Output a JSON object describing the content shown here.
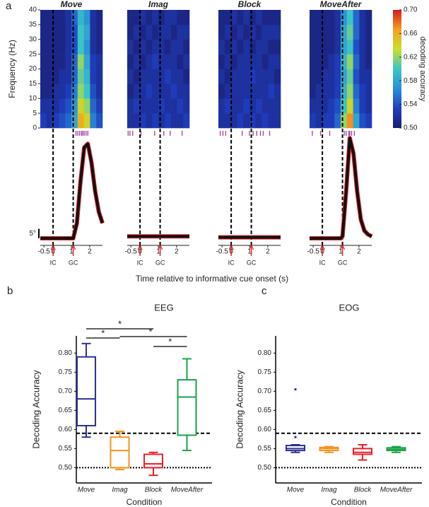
{
  "panel_labels": [
    "a",
    "b",
    "c"
  ],
  "shared_x_label": "Time relative to informative cue onset  (s)",
  "chart_data": [
    {
      "type": "heatmap",
      "title": "Move",
      "title_color": "#2e3192",
      "y_label": "Frequency (Hz)",
      "xlim": [
        -0.7,
        2.7
      ],
      "ylim": [
        0,
        40
      ],
      "yticks": [
        0,
        5,
        10,
        15,
        20,
        25,
        30,
        35,
        40
      ],
      "values": [
        [
          0.53,
          0.52,
          0.53,
          0.54,
          0.55,
          0.58,
          0.66,
          0.64,
          0.56,
          0.54
        ],
        [
          0.52,
          0.52,
          0.52,
          0.53,
          0.54,
          0.57,
          0.64,
          0.62,
          0.55,
          0.53
        ],
        [
          0.51,
          0.51,
          0.52,
          0.52,
          0.53,
          0.56,
          0.62,
          0.6,
          0.54,
          0.52
        ],
        [
          0.51,
          0.51,
          0.51,
          0.52,
          0.52,
          0.55,
          0.61,
          0.59,
          0.53,
          0.52
        ],
        [
          0.51,
          0.51,
          0.51,
          0.51,
          0.52,
          0.55,
          0.62,
          0.58,
          0.53,
          0.52
        ],
        [
          0.51,
          0.51,
          0.51,
          0.51,
          0.52,
          0.54,
          0.6,
          0.57,
          0.52,
          0.51
        ],
        [
          0.51,
          0.51,
          0.51,
          0.51,
          0.52,
          0.54,
          0.6,
          0.58,
          0.52,
          0.51
        ],
        [
          0.51,
          0.51,
          0.51,
          0.51,
          0.52,
          0.55,
          0.59,
          0.57,
          0.52,
          0.51
        ]
      ]
    },
    {
      "type": "heatmap",
      "title": "Imag",
      "title_color": "#f7941d",
      "xlim": [
        -0.7,
        2.7
      ],
      "ylim": [
        0,
        40
      ],
      "values": [
        [
          0.52,
          0.52,
          0.53,
          0.52,
          0.53,
          0.52,
          0.53,
          0.52,
          0.52,
          0.53
        ],
        [
          0.52,
          0.53,
          0.52,
          0.52,
          0.52,
          0.53,
          0.52,
          0.52,
          0.53,
          0.52
        ],
        [
          0.51,
          0.52,
          0.52,
          0.53,
          0.52,
          0.52,
          0.52,
          0.53,
          0.52,
          0.52
        ],
        [
          0.52,
          0.51,
          0.52,
          0.52,
          0.52,
          0.52,
          0.53,
          0.52,
          0.52,
          0.51
        ],
        [
          0.51,
          0.52,
          0.51,
          0.52,
          0.53,
          0.52,
          0.52,
          0.52,
          0.51,
          0.52
        ],
        [
          0.52,
          0.51,
          0.52,
          0.51,
          0.52,
          0.52,
          0.51,
          0.52,
          0.52,
          0.51
        ],
        [
          0.51,
          0.52,
          0.51,
          0.52,
          0.51,
          0.52,
          0.52,
          0.51,
          0.52,
          0.52
        ],
        [
          0.51,
          0.51,
          0.52,
          0.51,
          0.52,
          0.51,
          0.52,
          0.52,
          0.51,
          0.51
        ]
      ]
    },
    {
      "type": "heatmap",
      "title": "Block",
      "title_color": "#e8212a",
      "xlim": [
        -0.7,
        2.7
      ],
      "ylim": [
        0,
        40
      ],
      "values": [
        [
          0.52,
          0.52,
          0.52,
          0.53,
          0.52,
          0.53,
          0.52,
          0.53,
          0.52,
          0.52
        ],
        [
          0.52,
          0.53,
          0.52,
          0.52,
          0.53,
          0.52,
          0.53,
          0.52,
          0.52,
          0.52
        ],
        [
          0.51,
          0.52,
          0.52,
          0.52,
          0.52,
          0.52,
          0.52,
          0.52,
          0.53,
          0.52
        ],
        [
          0.52,
          0.51,
          0.52,
          0.52,
          0.52,
          0.53,
          0.52,
          0.52,
          0.52,
          0.51
        ],
        [
          0.51,
          0.52,
          0.51,
          0.52,
          0.52,
          0.52,
          0.52,
          0.51,
          0.52,
          0.52
        ],
        [
          0.52,
          0.51,
          0.52,
          0.51,
          0.52,
          0.51,
          0.52,
          0.52,
          0.51,
          0.51
        ],
        [
          0.51,
          0.52,
          0.51,
          0.52,
          0.51,
          0.52,
          0.51,
          0.52,
          0.52,
          0.52
        ],
        [
          0.51,
          0.51,
          0.52,
          0.51,
          0.52,
          0.51,
          0.52,
          0.51,
          0.51,
          0.51
        ]
      ]
    },
    {
      "type": "heatmap",
      "title": "MoveAfter",
      "title_color": "#1aa349",
      "xlim": [
        -0.7,
        2.7
      ],
      "ylim": [
        0,
        40
      ],
      "values": [
        [
          0.53,
          0.52,
          0.53,
          0.53,
          0.55,
          0.62,
          0.67,
          0.58,
          0.54,
          0.53
        ],
        [
          0.52,
          0.52,
          0.52,
          0.53,
          0.54,
          0.6,
          0.64,
          0.56,
          0.53,
          0.52
        ],
        [
          0.51,
          0.52,
          0.52,
          0.52,
          0.53,
          0.59,
          0.62,
          0.55,
          0.53,
          0.52
        ],
        [
          0.51,
          0.51,
          0.52,
          0.52,
          0.53,
          0.58,
          0.61,
          0.54,
          0.52,
          0.52
        ],
        [
          0.51,
          0.51,
          0.51,
          0.52,
          0.53,
          0.59,
          0.62,
          0.55,
          0.52,
          0.51
        ],
        [
          0.51,
          0.51,
          0.51,
          0.51,
          0.52,
          0.58,
          0.6,
          0.54,
          0.52,
          0.51
        ],
        [
          0.51,
          0.51,
          0.51,
          0.51,
          0.52,
          0.58,
          0.61,
          0.55,
          0.52,
          0.51
        ],
        [
          0.51,
          0.51,
          0.51,
          0.51,
          0.52,
          0.57,
          0.6,
          0.55,
          0.52,
          0.51
        ]
      ]
    },
    {
      "type": "colorbar",
      "label": "decoding accuracy",
      "lim": [
        0.5,
        0.7
      ],
      "ticks": [
        {
          "value": 0.5,
          "label": "0.50"
        },
        {
          "value": 0.54,
          "label": "0.54"
        },
        {
          "value": 0.58,
          "label": "0.58"
        },
        {
          "value": 0.62,
          "label": "0.62"
        },
        {
          "value": 0.66,
          "label": "0.66"
        },
        {
          "value": 0.7,
          "label": "0.70"
        }
      ],
      "colormap": [
        "#1b1b6e",
        "#1f3fbf",
        "#2a8fd8",
        "#3cc4c4",
        "#c8e02a",
        "#f4a020",
        "#d7191c"
      ]
    },
    {
      "type": "line",
      "xlim": [
        -0.7,
        2.7
      ],
      "ylim": [
        -3,
        55
      ],
      "xticks": [
        -0.5,
        0,
        1,
        2
      ],
      "events": [
        {
          "value": 0,
          "label": "IC"
        },
        {
          "value": 1.1,
          "label": "GC"
        }
      ],
      "scale_bar": {
        "value": 5,
        "label": "5°"
      },
      "significant_times": [
        1.25,
        1.35,
        1.45,
        1.55,
        1.62,
        1.7,
        1.8,
        1.9
      ],
      "x": [
        -0.7,
        0,
        1,
        1.1,
        1.3,
        1.5,
        1.7,
        1.9,
        2.1,
        2.3,
        2.5,
        2.7
      ],
      "values": [
        0,
        0,
        0,
        0,
        8,
        30,
        48,
        50,
        40,
        25,
        14,
        8
      ]
    },
    {
      "type": "line",
      "xlim": [
        -0.7,
        2.7
      ],
      "ylim": [
        -3,
        55
      ],
      "xticks": [
        -0.5,
        0,
        1,
        2
      ],
      "events": [
        {
          "value": 0,
          "label": "IC"
        },
        {
          "value": 1.1,
          "label": "GC"
        }
      ],
      "significant_times": [
        -0.65,
        -0.55,
        -0.4,
        0.05,
        0.8,
        1.3,
        1.65,
        2.3
      ],
      "x": [
        -0.7,
        0,
        1,
        1.1,
        1.3,
        1.5,
        1.7,
        1.9,
        2.1,
        2.3,
        2.5,
        2.7
      ],
      "values": [
        1,
        1,
        1,
        1,
        1,
        1,
        1,
        1,
        1,
        1,
        1,
        1
      ]
    },
    {
      "type": "line",
      "xlim": [
        -0.7,
        2.7
      ],
      "ylim": [
        -3,
        55
      ],
      "xticks": [
        -0.5,
        0,
        1,
        2
      ],
      "events": [
        {
          "value": 0,
          "label": "IC"
        },
        {
          "value": 1.1,
          "label": "GC"
        }
      ],
      "significant_times": [
        -0.6,
        -0.45,
        -0.3,
        0.6,
        1.0,
        1.2,
        1.4,
        1.6,
        1.75,
        2.1
      ],
      "x": [
        -0.7,
        0,
        1,
        1.1,
        1.3,
        1.5,
        1.7,
        1.9,
        2.1,
        2.3,
        2.5,
        2.7
      ],
      "values": [
        0.5,
        0.5,
        0.5,
        0.5,
        0.5,
        0.5,
        0.5,
        0.5,
        0.5,
        0.5,
        0.5,
        0.5
      ]
    },
    {
      "type": "line",
      "xlim": [
        -0.7,
        2.7
      ],
      "ylim": [
        -3,
        55
      ],
      "xticks": [
        -0.5,
        0,
        1,
        2
      ],
      "events": [
        {
          "value": 0,
          "label": "IC"
        },
        {
          "value": 1.1,
          "label": "GC"
        }
      ],
      "significant_times": [
        -0.55,
        -0.1,
        0.4,
        1.2,
        1.3,
        1.45,
        1.5,
        1.6,
        1.75
      ],
      "x": [
        -0.7,
        0,
        1,
        1.1,
        1.3,
        1.5,
        1.7,
        1.9,
        2.1,
        2.3,
        2.5,
        2.7
      ],
      "values": [
        0,
        0,
        0,
        1,
        25,
        53,
        45,
        25,
        10,
        4,
        2,
        1
      ]
    },
    {
      "type": "box",
      "title": "EEG",
      "x_label": "Condition",
      "y_label": "Decoding Accuracy",
      "ylim": [
        0.46,
        0.845
      ],
      "yticks": [
        {
          "value": 0.5,
          "label": "0.50"
        },
        {
          "value": 0.55,
          "label": "0.55"
        },
        {
          "value": 0.6,
          "label": "0.60"
        },
        {
          "value": 0.65,
          "label": "0.65"
        },
        {
          "value": 0.7,
          "label": "0.70"
        },
        {
          "value": 0.75,
          "label": "0.75"
        },
        {
          "value": 0.8,
          "label": "0.80"
        }
      ],
      "hlines": [
        {
          "value": 0.59,
          "style": "dashed"
        },
        {
          "value": 0.5,
          "style": "dotted"
        }
      ],
      "categories": [
        "Move",
        "Imag",
        "Block",
        "MoveAfter"
      ],
      "colors": [
        "#2e3192",
        "#f7941d",
        "#e8212a",
        "#1aa349"
      ],
      "boxes": [
        {
          "whislo": 0.58,
          "q1": 0.61,
          "med": 0.68,
          "q3": 0.79,
          "whishi": 0.825,
          "fliers": []
        },
        {
          "whislo": 0.495,
          "q1": 0.5,
          "med": 0.545,
          "q3": 0.58,
          "whishi": 0.595,
          "fliers": []
        },
        {
          "whislo": 0.48,
          "q1": 0.5,
          "med": 0.51,
          "q3": 0.535,
          "whishi": 0.54,
          "fliers": []
        },
        {
          "whislo": 0.545,
          "q1": 0.585,
          "med": 0.685,
          "q3": 0.73,
          "whishi": 0.785,
          "fliers": []
        }
      ],
      "annotations": [
        "*",
        "*",
        "*",
        "*"
      ]
    },
    {
      "type": "box",
      "title": "EOG",
      "x_label": "Condition",
      "y_label": "Decoding Accuracy",
      "ylim": [
        0.46,
        0.845
      ],
      "yticks": [
        {
          "value": 0.5,
          "label": "0.50"
        },
        {
          "value": 0.55,
          "label": "0.55"
        },
        {
          "value": 0.6,
          "label": "0.60"
        },
        {
          "value": 0.65,
          "label": "0.65"
        },
        {
          "value": 0.7,
          "label": "0.70"
        },
        {
          "value": 0.75,
          "label": "0.75"
        },
        {
          "value": 0.8,
          "label": "0.80"
        }
      ],
      "hlines": [
        {
          "value": 0.59,
          "style": "dashed"
        },
        {
          "value": 0.5,
          "style": "dotted"
        }
      ],
      "categories": [
        "Move",
        "Imag",
        "Block",
        "MoveAfter"
      ],
      "colors": [
        "#2e3192",
        "#f7941d",
        "#e8212a",
        "#1aa349"
      ],
      "boxes": [
        {
          "whislo": 0.54,
          "q1": 0.545,
          "med": 0.55,
          "q3": 0.558,
          "whishi": 0.56,
          "fliers": [
            0.705,
            0.58
          ]
        },
        {
          "whislo": 0.54,
          "q1": 0.545,
          "med": 0.55,
          "q3": 0.553,
          "whishi": 0.555,
          "fliers": []
        },
        {
          "whislo": 0.52,
          "q1": 0.535,
          "med": 0.54,
          "q3": 0.55,
          "whishi": 0.56,
          "fliers": []
        },
        {
          "whislo": 0.54,
          "q1": 0.545,
          "med": 0.548,
          "q3": 0.552,
          "whishi": 0.555,
          "fliers": []
        }
      ]
    }
  ]
}
